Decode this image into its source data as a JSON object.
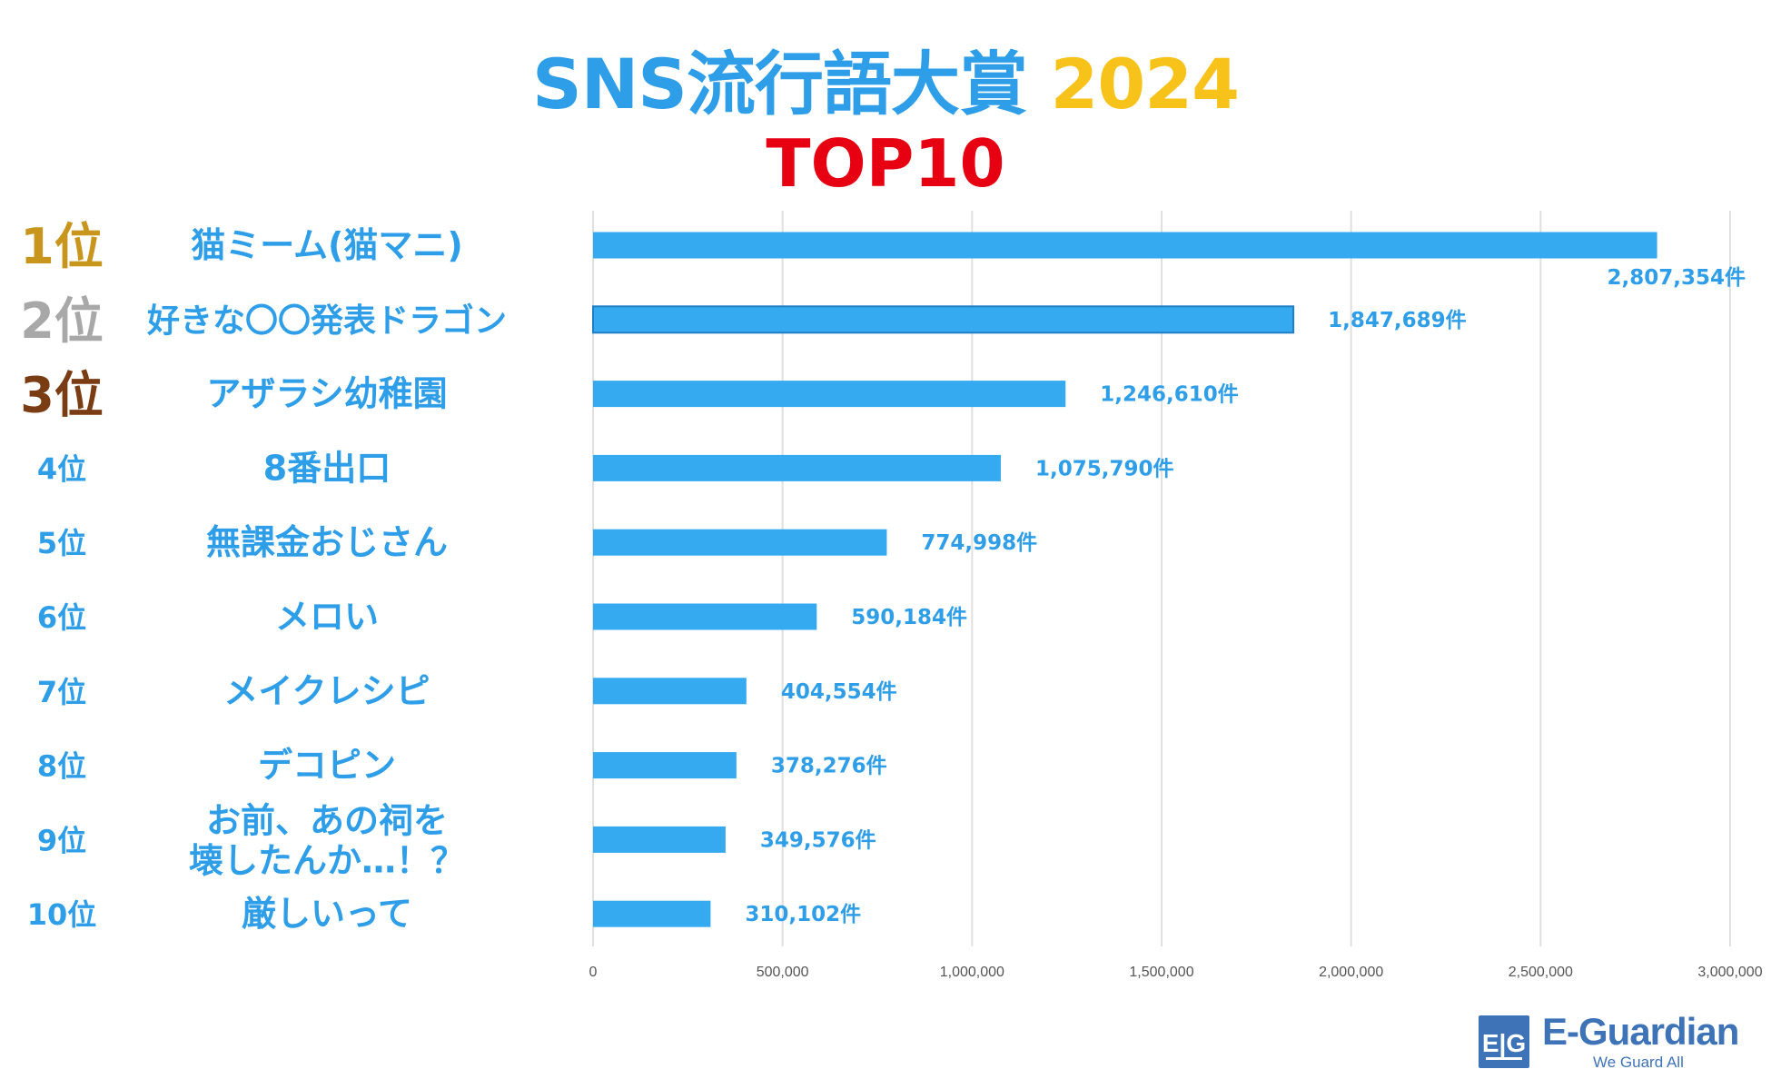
{
  "title": {
    "main": "SNS流行語大賞",
    "year": "2024",
    "sub": "TOP10"
  },
  "colors": {
    "bar": "#36aaf1",
    "bar_dark_edge": "#1f7ec4",
    "label_blue": "#2f9ee8",
    "title_year": "#f7c31a",
    "title_sub": "#e60012",
    "rank1": "#c8961c",
    "rank2": "#a8a8a8",
    "rank3": "#7a3d13",
    "grid": "#e0e0e0",
    "tick": "#555555",
    "logo": "#3e73b8"
  },
  "chart_data": {
    "type": "bar",
    "orientation": "horizontal",
    "title": "SNS流行語大賞 2024 TOP10",
    "ranks": [
      "1位",
      "2位",
      "3位",
      "4位",
      "5位",
      "6位",
      "7位",
      "8位",
      "9位",
      "10位"
    ],
    "categories": [
      "猫ミーム(猫マニ)",
      "好きな〇〇発表ドラゴン",
      "アザラシ幼稚園",
      "8番出口",
      "無課金おじさん",
      "メロい",
      "メイクレシピ",
      "デコピン",
      "お前、あの祠を\n壊したんか…！？",
      "厳しいって"
    ],
    "values": [
      2807354,
      1847689,
      1246610,
      1075790,
      774998,
      590184,
      404554,
      378276,
      349576,
      310102
    ],
    "value_labels": [
      "2,807,354件",
      "1,847,689件",
      "1,246,610件",
      "1,075,790件",
      "774,998件",
      "590,184件",
      "404,554件",
      "378,276件",
      "349,576件",
      "310,102件"
    ],
    "xlim": [
      0,
      3000000
    ],
    "xticks": [
      0,
      500000,
      1000000,
      1500000,
      2000000,
      2500000,
      3000000
    ],
    "xtick_labels": [
      "0",
      "500,000",
      "1,000,000",
      "1,500,000",
      "2,000,000",
      "2,500,000",
      "3,000,000"
    ],
    "grid": true,
    "xlabel": "",
    "ylabel": ""
  },
  "logo": {
    "mark": "E|G",
    "name": "E-Guardian",
    "tagline": "We Guard All"
  }
}
